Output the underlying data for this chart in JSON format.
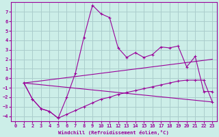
{
  "background_color": "#cceee8",
  "grid_color": "#aacccc",
  "line_color": "#990099",
  "xlabel": "Windchill (Refroidissement éolien,°C)",
  "xlim": [
    -0.5,
    23.5
  ],
  "ylim": [
    -4.5,
    8.0
  ],
  "yticks": [
    -4,
    -3,
    -2,
    -1,
    0,
    1,
    2,
    3,
    4,
    5,
    6,
    7
  ],
  "xticks": [
    0,
    1,
    2,
    3,
    4,
    5,
    6,
    7,
    8,
    9,
    10,
    11,
    12,
    13,
    14,
    15,
    16,
    17,
    18,
    19,
    20,
    21,
    22,
    23
  ],
  "curve1_x": [
    1,
    2,
    3,
    4,
    5,
    6,
    7,
    8,
    9,
    10,
    11,
    12,
    13,
    14,
    15,
    16,
    17,
    18,
    19,
    20,
    21,
    22,
    23
  ],
  "curve1_y": [
    -0.5,
    -2.2,
    -3.2,
    -3.5,
    -4.2,
    -2.0,
    0.5,
    4.3,
    7.7,
    6.8,
    6.4,
    3.2,
    2.2,
    2.7,
    2.2,
    2.5,
    3.3,
    3.2,
    3.4,
    1.2,
    2.3,
    -1.4,
    -1.4
  ],
  "curve2_x": [
    1,
    2,
    3,
    4,
    5,
    6,
    7,
    8,
    9,
    10,
    11,
    12,
    13,
    14,
    15,
    16,
    17,
    18,
    19,
    20,
    21,
    22,
    23
  ],
  "curve2_y": [
    -0.5,
    -2.2,
    -3.2,
    -3.5,
    -4.2,
    -3.8,
    -3.4,
    -3.0,
    -2.6,
    -2.2,
    -2.0,
    -1.7,
    -1.5,
    -1.3,
    -1.1,
    -0.9,
    -0.7,
    -0.5,
    -0.3,
    -0.2,
    -0.2,
    -0.2,
    -2.5
  ],
  "curve3_x": [
    1,
    23
  ],
  "curve3_y": [
    -0.5,
    2.0
  ],
  "curve4_x": [
    1,
    23
  ],
  "curve4_y": [
    -0.5,
    -2.5
  ]
}
